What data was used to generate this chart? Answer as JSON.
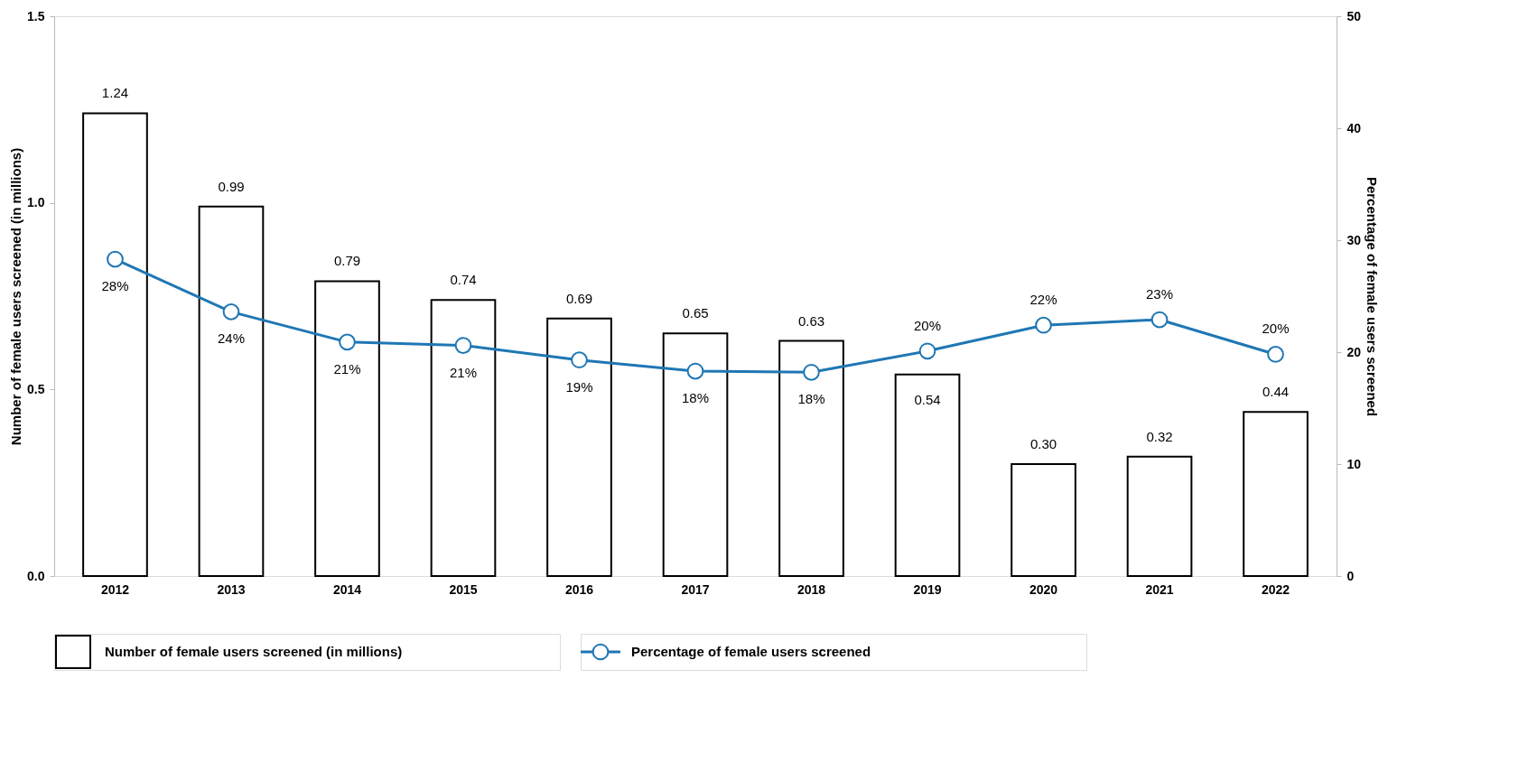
{
  "chart_data": {
    "type": "bar",
    "categories": [
      "2012",
      "2013",
      "2014",
      "2015",
      "2016",
      "2017",
      "2018",
      "2019",
      "2020",
      "2021",
      "2022"
    ],
    "series": [
      {
        "name": "Number of female users screened (in millions)",
        "color": "#000000",
        "values": [
          1.24,
          0.99,
          0.79,
          0.74,
          0.69,
          0.65,
          0.63,
          0.54,
          0.3,
          0.32,
          0.44
        ],
        "value_labels": [
          "1.24",
          "0.99",
          "0.79",
          "0.74",
          "0.69",
          "0.65",
          "0.63",
          "0.54",
          "0.30",
          "0.32",
          "0.44"
        ]
      },
      {
        "name": "Percentage of female users screened",
        "type": "line",
        "axis": "y2",
        "color": "#1f77b4",
        "marker": "circle",
        "values": [
          28.3,
          23.6,
          20.9,
          20.6,
          19.3,
          18.3,
          18.2,
          20.1,
          22.4,
          22.9,
          19.8
        ],
        "value_labels": [
          "28%",
          "24%",
          "21%",
          "21%",
          "19%",
          "18%",
          "18%",
          "20%",
          "22%",
          "23%",
          "20%"
        ]
      }
    ],
    "ylabel": "Number of female users screened (in millions)",
    "y2label": "Percentage of female users screened",
    "ylim": [
      0,
      1.5
    ],
    "yticks": [
      {
        "value": 0,
        "label": "0.0"
      },
      {
        "value": 0.5,
        "label": "0.5"
      },
      {
        "value": 1.0,
        "label": "1.0"
      },
      {
        "value": 1.5,
        "label": "1.5"
      }
    ],
    "y2lim": [
      0,
      50
    ],
    "y2ticks": [
      0,
      10,
      20,
      30,
      40,
      50
    ],
    "legend": "bottom"
  }
}
